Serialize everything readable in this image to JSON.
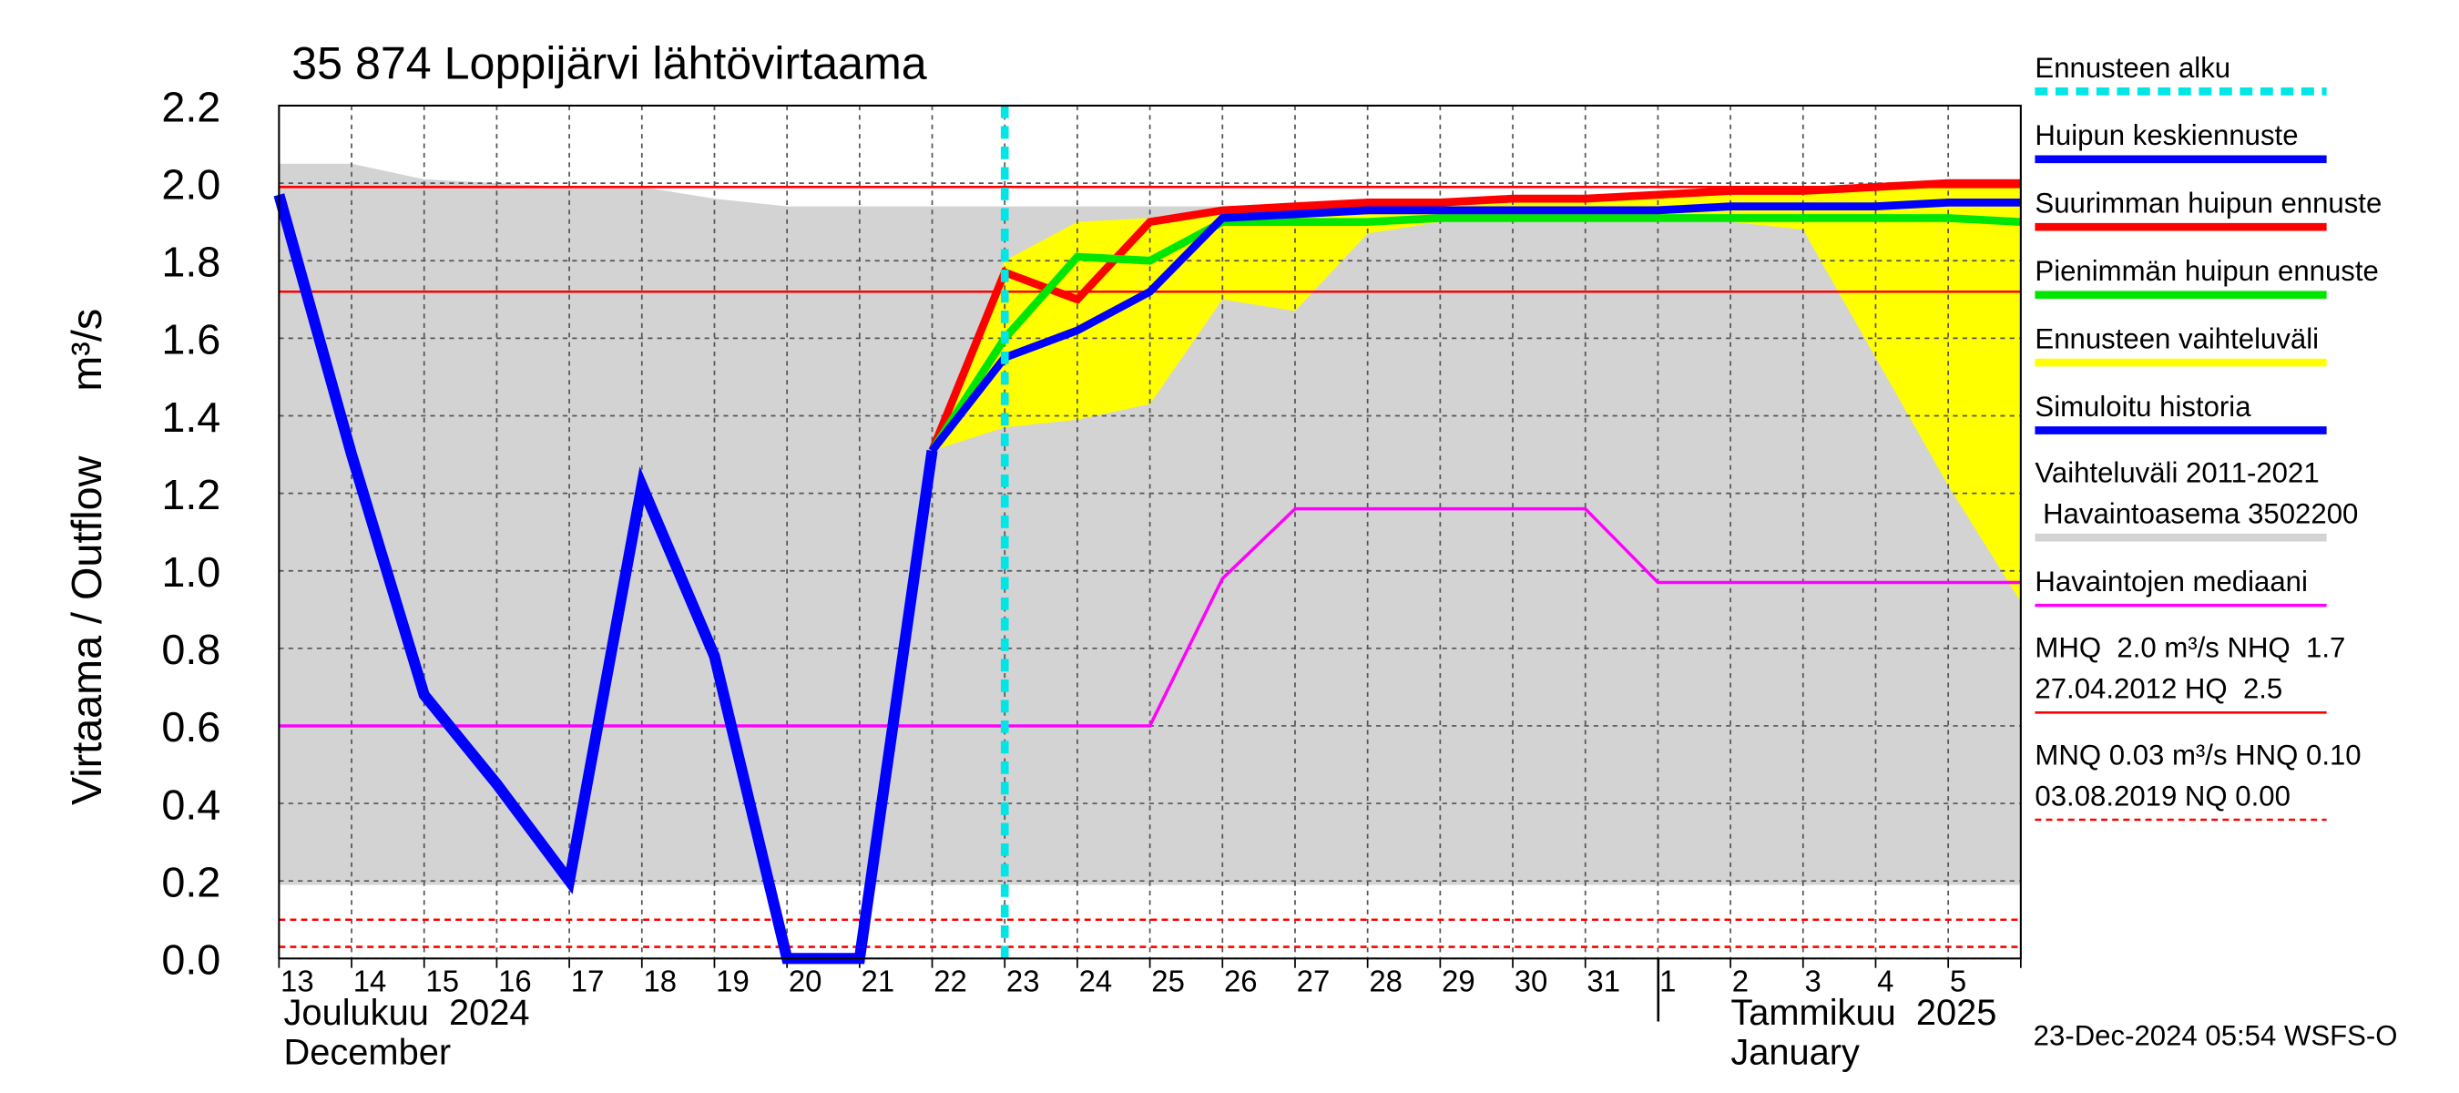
{
  "chart_data": {
    "type": "line",
    "title": "35 874 Loppijärvi lähtövirtaama",
    "y_label": [
      "Virtaama / Outflow",
      "m³/s"
    ],
    "categories": [
      "13",
      "14",
      "15",
      "16",
      "17",
      "18",
      "19",
      "20",
      "21",
      "22",
      "23",
      "24",
      "25",
      "26",
      "27",
      "28",
      "29",
      "30",
      "31",
      "1",
      "2",
      "3",
      "4",
      "5",
      null
    ],
    "ylim": [
      0,
      2.2
    ],
    "yticks": [
      {
        "value": 0,
        "label": "0.0"
      },
      0.2,
      0.4,
      0.6,
      0.8,
      {
        "value": 1,
        "label": "1.0"
      },
      1.2,
      1.4,
      1.6,
      1.8,
      {
        "value": 2,
        "label": "2.0"
      },
      2.2
    ],
    "grid": true,
    "months": [
      [
        "Joulukuu  2024",
        "December"
      ],
      [
        "Tammikuu  2025",
        "January"
      ]
    ],
    "timestamp": "23-Dec-2024 05:54 WSFS-O",
    "forecast_start_index": 10,
    "bands": [
      {
        "color": "#d3d3d3",
        "upper": [
          2.05,
          2.05,
          2.01,
          2.0,
          1.99,
          1.99,
          1.96,
          1.94,
          1.94,
          1.94,
          1.94,
          1.94,
          1.94,
          1.94,
          1.94,
          1.93,
          1.95,
          1.96,
          1.97,
          1.97,
          1.98,
          1.98,
          1.99,
          1.99,
          2.0
        ],
        "lower": [
          0.19,
          0.19,
          0.19,
          0.19,
          0.19,
          0.19,
          0.19,
          0.19,
          0.19,
          0.19,
          0.19,
          0.19,
          0.19,
          0.19,
          0.19,
          0.19,
          0.19,
          0.19,
          0.19,
          0.19,
          0.19,
          0.19,
          0.19,
          0.19,
          0.19
        ]
      },
      {
        "color": "#ffff00",
        "upper": [
          null,
          null,
          null,
          null,
          null,
          null,
          null,
          null,
          null,
          1.31,
          1.8,
          1.9,
          1.91,
          1.93,
          1.94,
          1.95,
          1.96,
          1.96,
          1.97,
          1.97,
          1.98,
          1.98,
          1.99,
          1.99,
          2.0
        ],
        "lower": [
          null,
          null,
          null,
          null,
          null,
          null,
          null,
          null,
          null,
          1.31,
          1.37,
          1.39,
          1.43,
          1.7,
          1.67,
          1.87,
          1.9,
          1.9,
          1.9,
          1.9,
          1.9,
          1.88,
          1.55,
          1.22,
          0.92
        ]
      }
    ],
    "reference_lines": [
      {
        "value": 1.99,
        "color": "#ff0000",
        "dashed": false
      },
      {
        "value": 1.72,
        "color": "#ff0000",
        "dashed": false
      },
      {
        "value": 0.1,
        "color": "#ff0000",
        "dashed": true
      },
      {
        "value": 0.03,
        "color": "#ff0000",
        "dashed": true
      }
    ],
    "series": [
      {
        "color": "#ff00ff",
        "width": 2,
        "values": [
          0.6,
          0.6,
          0.6,
          0.6,
          0.6,
          0.6,
          0.6,
          0.6,
          0.6,
          0.6,
          0.6,
          0.6,
          0.6,
          0.98,
          1.16,
          1.16,
          1.16,
          1.16,
          1.16,
          0.97,
          0.97,
          0.97,
          0.97,
          0.97,
          0.97
        ]
      },
      {
        "color": "#ff0000",
        "width": 5,
        "values": [
          null,
          null,
          null,
          null,
          null,
          null,
          null,
          null,
          null,
          1.31,
          1.77,
          1.7,
          1.9,
          1.93,
          1.94,
          1.95,
          1.95,
          1.96,
          1.96,
          1.97,
          1.98,
          1.98,
          1.99,
          2.0,
          2.0
        ]
      },
      {
        "color": "#00e600",
        "width": 5,
        "values": [
          null,
          null,
          null,
          null,
          null,
          null,
          null,
          null,
          null,
          1.31,
          1.6,
          1.81,
          1.8,
          1.9,
          1.9,
          1.9,
          1.91,
          1.91,
          1.91,
          1.91,
          1.91,
          1.91,
          1.91,
          1.91,
          1.9
        ]
      },
      {
        "color": "#0000ff",
        "width": 5,
        "values": [
          null,
          null,
          null,
          null,
          null,
          null,
          null,
          null,
          null,
          1.31,
          1.55,
          1.62,
          1.72,
          1.91,
          1.92,
          1.93,
          1.93,
          1.93,
          1.93,
          1.93,
          1.94,
          1.94,
          1.94,
          1.95,
          1.95
        ]
      },
      {
        "color": "#0000ff",
        "width": 7,
        "values": [
          1.97,
          1.3,
          0.68,
          0.45,
          0.2,
          1.22,
          0.78,
          0.0,
          0.0,
          1.31,
          null,
          null,
          null,
          null,
          null,
          null,
          null,
          null,
          null,
          null,
          null,
          null,
          null,
          null,
          null
        ]
      }
    ],
    "legend": [
      {
        "lines": [
          "Ennusteen alku"
        ],
        "color": "#00e5e5",
        "width": 5,
        "dashed": true
      },
      {
        "lines": [
          "Huipun keskiennuste"
        ],
        "color": "#0000ff",
        "width": 5,
        "dashed": false
      },
      {
        "lines": [
          "Suurimman huipun ennuste"
        ],
        "color": "#ff0000",
        "width": 5,
        "dashed": false
      },
      {
        "lines": [
          "Pienimmän huipun ennuste"
        ],
        "color": "#00e600",
        "width": 5,
        "dashed": false
      },
      {
        "lines": [
          "Ennusteen vaihteluväli"
        ],
        "color": "#ffff00",
        "width": 5,
        "dashed": false
      },
      {
        "lines": [
          "Simuloitu historia"
        ],
        "color": "#0000ff",
        "width": 5,
        "dashed": false
      },
      {
        "lines": [
          "Vaihteluväli 2011-2021",
          " Havaintoasema 3502200"
        ],
        "color": "#d3d3d3",
        "width": 5,
        "dashed": false
      },
      {
        "lines": [
          "Havaintojen mediaani"
        ],
        "color": "#ff00ff",
        "width": 2,
        "dashed": false
      },
      {
        "lines": [
          "MHQ  2.0 m³/s NHQ  1.7",
          "27.04.2012 HQ  2.5"
        ],
        "color": "#ff0000",
        "width": 1.5,
        "dashed": false
      },
      {
        "lines": [
          "MNQ 0.03 m³/s HNQ 0.10",
          "03.08.2019 NQ 0.00"
        ],
        "color": "#ff0000",
        "width": 1.5,
        "dashed": true
      }
    ]
  }
}
